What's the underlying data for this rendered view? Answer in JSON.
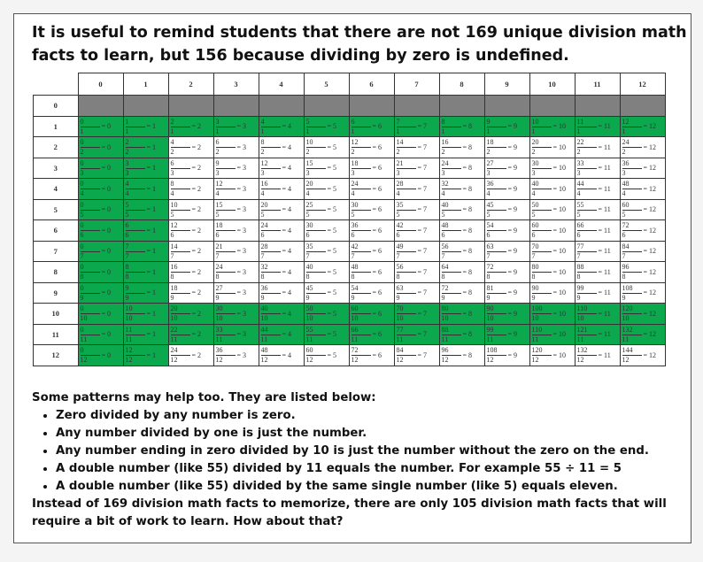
{
  "title": "It is useful to remind students that there are not 169 unique division math facts to learn, but 156 because dividing by zero is undefined.",
  "colors": {
    "highlight": "#0ba84e",
    "undefined": "#808080"
  },
  "table": {
    "col_headers": [
      "0",
      "1",
      "2",
      "3",
      "4",
      "5",
      "6",
      "7",
      "8",
      "9",
      "10",
      "11",
      "12"
    ],
    "zero_row_label": "0",
    "rows": [
      {
        "label": "1",
        "cells": [
          [
            "0",
            "1",
            "0"
          ],
          [
            "1",
            "1",
            "1"
          ],
          [
            "2",
            "1",
            "2"
          ],
          [
            "3",
            "1",
            "3"
          ],
          [
            "4",
            "1",
            "4"
          ],
          [
            "5",
            "1",
            "5"
          ],
          [
            "6",
            "1",
            "6"
          ],
          [
            "7",
            "1",
            "7"
          ],
          [
            "8",
            "1",
            "8"
          ],
          [
            "9",
            "1",
            "9"
          ],
          [
            "10",
            "1",
            "10"
          ],
          [
            "11",
            "1",
            "11"
          ],
          [
            "12",
            "1",
            "12"
          ]
        ]
      },
      {
        "label": "2",
        "cells": [
          [
            "0",
            "2",
            "0"
          ],
          [
            "2",
            "2",
            "1"
          ],
          [
            "4",
            "2",
            "2"
          ],
          [
            "6",
            "2",
            "3"
          ],
          [
            "8",
            "2",
            "4"
          ],
          [
            "10",
            "2",
            "5"
          ],
          [
            "12",
            "2",
            "6"
          ],
          [
            "14",
            "2",
            "7"
          ],
          [
            "16",
            "2",
            "8"
          ],
          [
            "18",
            "2",
            "9"
          ],
          [
            "20",
            "2",
            "10"
          ],
          [
            "22",
            "2",
            "11"
          ],
          [
            "24",
            "2",
            "12"
          ]
        ]
      },
      {
        "label": "3",
        "cells": [
          [
            "0",
            "3",
            "0"
          ],
          [
            "3",
            "3",
            "1"
          ],
          [
            "6",
            "3",
            "2"
          ],
          [
            "9",
            "3",
            "3"
          ],
          [
            "12",
            "3",
            "4"
          ],
          [
            "15",
            "3",
            "5"
          ],
          [
            "18",
            "3",
            "6"
          ],
          [
            "21",
            "3",
            "7"
          ],
          [
            "24",
            "3",
            "8"
          ],
          [
            "27",
            "3",
            "9"
          ],
          [
            "30",
            "3",
            "10"
          ],
          [
            "33",
            "3",
            "11"
          ],
          [
            "36",
            "3",
            "12"
          ]
        ]
      },
      {
        "label": "4",
        "cells": [
          [
            "0",
            "4",
            "0"
          ],
          [
            "4",
            "4",
            "1"
          ],
          [
            "8",
            "4",
            "2"
          ],
          [
            "12",
            "4",
            "3"
          ],
          [
            "16",
            "4",
            "4"
          ],
          [
            "20",
            "4",
            "5"
          ],
          [
            "24",
            "4",
            "6"
          ],
          [
            "28",
            "4",
            "7"
          ],
          [
            "32",
            "4",
            "8"
          ],
          [
            "36",
            "4",
            "9"
          ],
          [
            "40",
            "4",
            "10"
          ],
          [
            "44",
            "4",
            "11"
          ],
          [
            "48",
            "4",
            "12"
          ]
        ]
      },
      {
        "label": "5",
        "cells": [
          [
            "0",
            "5",
            "0"
          ],
          [
            "5",
            "5",
            "1"
          ],
          [
            "10",
            "5",
            "2"
          ],
          [
            "15",
            "5",
            "3"
          ],
          [
            "20",
            "5",
            "4"
          ],
          [
            "25",
            "5",
            "5"
          ],
          [
            "30",
            "5",
            "6"
          ],
          [
            "35",
            "5",
            "7"
          ],
          [
            "40",
            "5",
            "8"
          ],
          [
            "45",
            "5",
            "9"
          ],
          [
            "50",
            "5",
            "10"
          ],
          [
            "55",
            "5",
            "11"
          ],
          [
            "60",
            "5",
            "12"
          ]
        ]
      },
      {
        "label": "6",
        "cells": [
          [
            "0",
            "6",
            "0"
          ],
          [
            "6",
            "6",
            "1"
          ],
          [
            "12",
            "6",
            "2"
          ],
          [
            "18",
            "6",
            "3"
          ],
          [
            "24",
            "6",
            "4"
          ],
          [
            "30",
            "6",
            "5"
          ],
          [
            "36",
            "6",
            "6"
          ],
          [
            "42",
            "6",
            "7"
          ],
          [
            "48",
            "6",
            "8"
          ],
          [
            "54",
            "6",
            "9"
          ],
          [
            "60",
            "6",
            "10"
          ],
          [
            "66",
            "6",
            "11"
          ],
          [
            "72",
            "6",
            "12"
          ]
        ]
      },
      {
        "label": "7",
        "cells": [
          [
            "0",
            "7",
            "0"
          ],
          [
            "7",
            "7",
            "1"
          ],
          [
            "14",
            "7",
            "2"
          ],
          [
            "21",
            "7",
            "3"
          ],
          [
            "28",
            "7",
            "4"
          ],
          [
            "35",
            "7",
            "5"
          ],
          [
            "42",
            "7",
            "6"
          ],
          [
            "49",
            "7",
            "7"
          ],
          [
            "56",
            "7",
            "8"
          ],
          [
            "63",
            "7",
            "9"
          ],
          [
            "70",
            "7",
            "10"
          ],
          [
            "77",
            "7",
            "11"
          ],
          [
            "84",
            "7",
            "12"
          ]
        ]
      },
      {
        "label": "8",
        "cells": [
          [
            "0",
            "8",
            "0"
          ],
          [
            "8",
            "8",
            "1"
          ],
          [
            "16",
            "8",
            "2"
          ],
          [
            "24",
            "8",
            "3"
          ],
          [
            "32",
            "8",
            "4"
          ],
          [
            "40",
            "8",
            "5"
          ],
          [
            "48",
            "8",
            "6"
          ],
          [
            "56",
            "8",
            "7"
          ],
          [
            "64",
            "8",
            "8"
          ],
          [
            "72",
            "8",
            "9"
          ],
          [
            "80",
            "8",
            "10"
          ],
          [
            "88",
            "8",
            "11"
          ],
          [
            "96",
            "8",
            "12"
          ]
        ]
      },
      {
        "label": "9",
        "cells": [
          [
            "0",
            "9",
            "0"
          ],
          [
            "9",
            "9",
            "1"
          ],
          [
            "18",
            "9",
            "2"
          ],
          [
            "27",
            "9",
            "3"
          ],
          [
            "36",
            "9",
            "4"
          ],
          [
            "45",
            "9",
            "5"
          ],
          [
            "54",
            "9",
            "6"
          ],
          [
            "63",
            "9",
            "7"
          ],
          [
            "72",
            "9",
            "8"
          ],
          [
            "81",
            "9",
            "9"
          ],
          [
            "90",
            "9",
            "10"
          ],
          [
            "99",
            "9",
            "11"
          ],
          [
            "108",
            "9",
            "12"
          ]
        ]
      },
      {
        "label": "10",
        "cells": [
          [
            "0",
            "10",
            "0"
          ],
          [
            "10",
            "10",
            "1"
          ],
          [
            "20",
            "10",
            "2"
          ],
          [
            "30",
            "10",
            "3"
          ],
          [
            "40",
            "10",
            "4"
          ],
          [
            "50",
            "10",
            "5"
          ],
          [
            "60",
            "10",
            "6"
          ],
          [
            "70",
            "10",
            "7"
          ],
          [
            "80",
            "10",
            "8"
          ],
          [
            "90",
            "10",
            "9"
          ],
          [
            "100",
            "10",
            "10"
          ],
          [
            "110",
            "10",
            "11"
          ],
          [
            "120",
            "10",
            "12"
          ]
        ]
      },
      {
        "label": "11",
        "cells": [
          [
            "0",
            "11",
            "0"
          ],
          [
            "11",
            "11",
            "1"
          ],
          [
            "22",
            "11",
            "2"
          ],
          [
            "33",
            "11",
            "3"
          ],
          [
            "44",
            "11",
            "4"
          ],
          [
            "55",
            "11",
            "5"
          ],
          [
            "66",
            "11",
            "6"
          ],
          [
            "77",
            "11",
            "7"
          ],
          [
            "88",
            "11",
            "8"
          ],
          [
            "99",
            "11",
            "9"
          ],
          [
            "110",
            "11",
            "10"
          ],
          [
            "121",
            "11",
            "11"
          ],
          [
            "132",
            "11",
            "12"
          ]
        ]
      },
      {
        "label": "12",
        "cells": [
          [
            "0",
            "12",
            "0"
          ],
          [
            "12",
            "12",
            "1"
          ],
          [
            "24",
            "12",
            "2"
          ],
          [
            "36",
            "12",
            "3"
          ],
          [
            "48",
            "12",
            "4"
          ],
          [
            "60",
            "12",
            "5"
          ],
          [
            "72",
            "12",
            "6"
          ],
          [
            "84",
            "12",
            "7"
          ],
          [
            "96",
            "12",
            "8"
          ],
          [
            "108",
            "12",
            "9"
          ],
          [
            "120",
            "12",
            "10"
          ],
          [
            "132",
            "12",
            "11"
          ],
          [
            "144",
            "12",
            "12"
          ]
        ]
      }
    ]
  },
  "intro": "Some patterns may help too. They are listed below:",
  "patterns": [
    "Zero divided by any number is zero.",
    "Any number divided by one is just the number.",
    "Any number ending in zero divided by 10 is just the number without the zero on the end.",
    "A double number (like 55) divided by 11 equals the number. For example 55 ÷ 11 = 5",
    "A double number (like 55) divided by the same single number (like 5) equals eleven."
  ],
  "conclusion": "Instead of 169 division math facts to memorize, there are only 105 division math facts that will require a bit of work to learn. How about that?"
}
